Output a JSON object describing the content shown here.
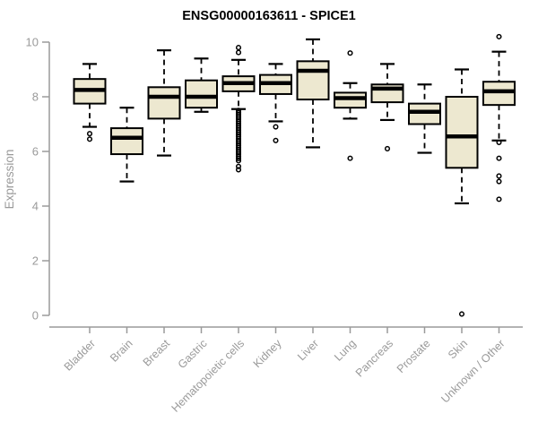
{
  "chart_data": {
    "type": "boxplot",
    "title": "ENSG00000163611 - SPICE1",
    "ylabel": "Expression",
    "xlabel": "",
    "ylim": [
      0,
      10
    ],
    "yticks": [
      0,
      2,
      4,
      6,
      8,
      10
    ],
    "grid": false,
    "legend_position": "none",
    "categories": [
      "Bladder",
      "Brain",
      "Breast",
      "Gastric",
      "Hematopoietic cells",
      "Kidney",
      "Liver",
      "Lung",
      "Pancreas",
      "Prostate",
      "Skin",
      "Unknown / Other"
    ],
    "series": [
      {
        "category": "Bladder",
        "low": 6.9,
        "q1": 7.75,
        "median": 8.25,
        "q3": 8.65,
        "high": 9.2,
        "outliers": [
          6.65,
          6.45
        ]
      },
      {
        "category": "Brain",
        "low": 4.9,
        "q1": 5.9,
        "median": 6.5,
        "q3": 6.85,
        "high": 7.6,
        "outliers": []
      },
      {
        "category": "Breast",
        "low": 5.85,
        "q1": 7.2,
        "median": 8.0,
        "q3": 8.35,
        "high": 9.7,
        "outliers": []
      },
      {
        "category": "Gastric",
        "low": 7.45,
        "q1": 7.6,
        "median": 8.0,
        "q3": 8.6,
        "high": 9.4,
        "outliers": []
      },
      {
        "category": "Hematopoietic cells",
        "low": 7.55,
        "q1": 8.2,
        "median": 8.5,
        "q3": 8.75,
        "high": 9.35,
        "outliers": [
          9.8,
          9.62,
          7.5,
          7.42,
          7.34,
          7.26,
          7.18,
          7.1,
          7.02,
          6.94,
          6.86,
          6.78,
          6.7,
          6.62,
          6.54,
          6.46,
          6.38,
          6.3,
          6.22,
          6.14,
          6.06,
          5.98,
          5.9,
          5.82,
          5.74,
          5.66,
          5.45,
          5.33
        ]
      },
      {
        "category": "Kidney",
        "low": 7.1,
        "q1": 8.1,
        "median": 8.5,
        "q3": 8.8,
        "high": 9.2,
        "outliers": [
          6.9,
          6.4
        ]
      },
      {
        "category": "Liver",
        "low": 6.15,
        "q1": 7.9,
        "median": 8.95,
        "q3": 9.3,
        "high": 10.1,
        "outliers": []
      },
      {
        "category": "Lung",
        "low": 7.2,
        "q1": 7.6,
        "median": 7.95,
        "q3": 8.15,
        "high": 8.5,
        "outliers": [
          9.6,
          5.75
        ]
      },
      {
        "category": "Pancreas",
        "low": 7.15,
        "q1": 7.8,
        "median": 8.3,
        "q3": 8.45,
        "high": 9.2,
        "outliers": [
          6.1
        ]
      },
      {
        "category": "Prostate",
        "low": 5.95,
        "q1": 7.0,
        "median": 7.45,
        "q3": 7.75,
        "high": 8.45,
        "outliers": []
      },
      {
        "category": "Skin",
        "low": 4.1,
        "q1": 5.4,
        "median": 6.55,
        "q3": 8.0,
        "high": 9.0,
        "outliers": [
          0.05
        ]
      },
      {
        "category": "Unknown / Other",
        "low": 6.4,
        "q1": 7.7,
        "median": 8.2,
        "q3": 8.55,
        "high": 9.65,
        "outliers": [
          10.2,
          6.33,
          5.75,
          5.1,
          4.9,
          4.25
        ]
      }
    ],
    "colors": {
      "box_fill": "#EDE8D0",
      "box_stroke": "#000000",
      "median": "#000000",
      "whisker": "#000000",
      "outlier": "#000000",
      "axis": "#9a9a9a",
      "tick_label": "#9a9a9a",
      "title": "#000000",
      "background": "#FFFFFF"
    }
  }
}
